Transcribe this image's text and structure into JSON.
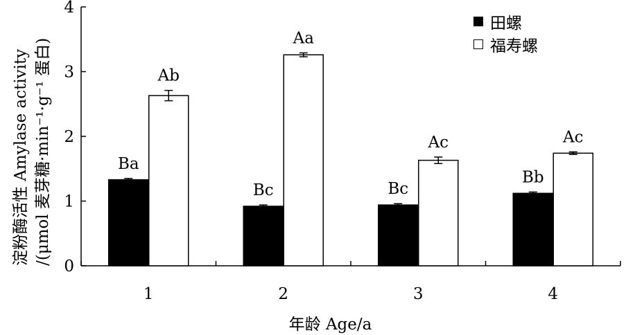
{
  "chart_data": {
    "type": "bar",
    "categories": [
      "1",
      "2",
      "3",
      "4"
    ],
    "series": [
      {
        "name": "田螺",
        "values": [
          1.33,
          0.92,
          0.94,
          1.12
        ],
        "errors": [
          0.02,
          0.02,
          0.02,
          0.02
        ],
        "labels": [
          "Ba",
          "Bc",
          "Bc",
          "Bb"
        ],
        "color": "#000000"
      },
      {
        "name": "福寿螺",
        "values": [
          2.63,
          3.26,
          1.63,
          1.74
        ],
        "errors": [
          0.08,
          0.03,
          0.05,
          0.02
        ],
        "labels": [
          "Ab",
          "Aa",
          "Ac",
          "Ac"
        ],
        "color": "#ffffff"
      }
    ],
    "xlabel": "年龄 Age/a",
    "ylabel_line1": "淀粉酶活性 Amylase activity",
    "ylabel_line2": "/(μmol 麦芽糖·min⁻¹·g⁻¹ 蛋白)",
    "ylim": [
      0,
      4
    ],
    "yticks": [
      "0",
      "1",
      "2",
      "3",
      "4"
    ],
    "grid": false,
    "legend_position": "top-right"
  }
}
